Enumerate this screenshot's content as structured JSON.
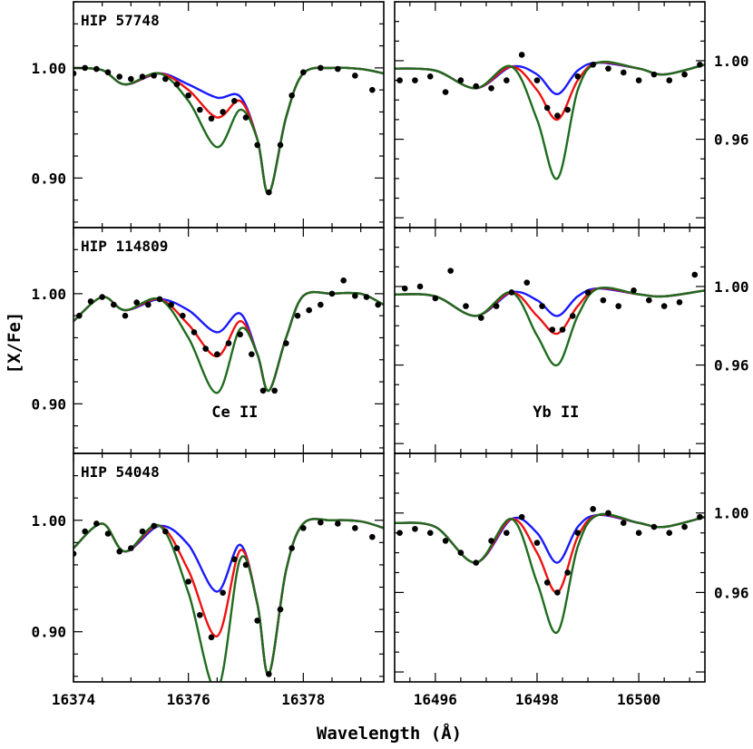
{
  "figure": {
    "xlabel": "Wavelength (Å)",
    "ylabel": "[X/Fe]"
  },
  "colors": {
    "blue": "#1a1aff",
    "red": "#ee1111",
    "green": "#1f6b1f",
    "points": "#000000"
  },
  "chart_data": [
    {
      "type": "line",
      "panel": "top-left",
      "star_label": "HIP 57748",
      "element_label": "",
      "xlim": [
        16374,
        16379.4
      ],
      "ylim": [
        0.855,
        1.06
      ],
      "x_ticks": [
        "16374",
        "16376",
        "16378"
      ],
      "y_ticks": [
        "1.00",
        "0.90"
      ],
      "y_tick_side": "left",
      "series": [
        {
          "color": "blue",
          "x": [
            16374.0,
            16374.5,
            16374.9,
            16375.5,
            16376.0,
            16376.5,
            16376.9,
            16377.2,
            16377.4,
            16377.7,
            16378.0,
            16378.5,
            16379.0,
            16379.4
          ],
          "y": [
            1.0,
            0.998,
            0.985,
            0.995,
            0.985,
            0.973,
            0.974,
            0.935,
            0.886,
            0.955,
            0.995,
            1.0,
            0.999,
            0.995
          ]
        },
        {
          "color": "red",
          "x": [
            16374.0,
            16374.5,
            16374.9,
            16375.5,
            16376.0,
            16376.5,
            16376.9,
            16377.2,
            16377.4,
            16377.7,
            16378.0,
            16378.5,
            16379.0,
            16379.4
          ],
          "y": [
            1.0,
            0.998,
            0.985,
            0.995,
            0.98,
            0.955,
            0.97,
            0.935,
            0.886,
            0.955,
            0.995,
            1.0,
            0.999,
            0.995
          ]
        },
        {
          "color": "green",
          "x": [
            16374.0,
            16374.5,
            16374.9,
            16375.5,
            16376.0,
            16376.5,
            16376.9,
            16377.2,
            16377.4,
            16377.7,
            16378.0,
            16378.5,
            16379.0,
            16379.4
          ],
          "y": [
            1.0,
            0.998,
            0.985,
            0.995,
            0.97,
            0.928,
            0.962,
            0.935,
            0.886,
            0.955,
            0.995,
            1.0,
            0.999,
            0.995
          ]
        }
      ],
      "points": {
        "x": [
          16374.0,
          16374.2,
          16374.4,
          16374.6,
          16374.8,
          16375.0,
          16375.2,
          16375.4,
          16375.6,
          16375.8,
          16376.0,
          16376.2,
          16376.4,
          16376.6,
          16376.8,
          16377.0,
          16377.2,
          16377.4,
          16377.6,
          16377.8,
          16378.0,
          16378.3,
          16378.6,
          16378.9,
          16379.2
        ],
        "y": [
          0.995,
          1.0,
          0.999,
          0.996,
          0.992,
          0.99,
          0.992,
          0.993,
          0.99,
          0.985,
          0.975,
          0.962,
          0.954,
          0.96,
          0.97,
          0.955,
          0.93,
          0.887,
          0.93,
          0.975,
          0.996,
          1.0,
          0.999,
          0.993,
          0.98
        ]
      }
    },
    {
      "type": "line",
      "panel": "top-right",
      "star_label": "",
      "element_label": "",
      "xlim": [
        16495.2,
        16501.3
      ],
      "ylim": [
        0.915,
        1.03
      ],
      "x_ticks": [
        "16496",
        "16498",
        "16500"
      ],
      "y_ticks": [
        "1.00",
        "0.96"
      ],
      "y_tick_side": "right",
      "series": [
        {
          "color": "blue",
          "x": [
            16495.2,
            16496.0,
            16496.8,
            16497.5,
            16498.0,
            16498.4,
            16498.8,
            16499.2,
            16500.0,
            16500.5,
            16501.3
          ],
          "y": [
            0.996,
            0.995,
            0.986,
            0.997,
            0.993,
            0.983,
            0.995,
            0.999,
            0.996,
            0.993,
            0.998
          ]
        },
        {
          "color": "red",
          "x": [
            16495.2,
            16496.0,
            16496.8,
            16497.5,
            16498.0,
            16498.4,
            16498.8,
            16499.2,
            16500.0,
            16500.5,
            16501.3
          ],
          "y": [
            0.996,
            0.995,
            0.986,
            0.997,
            0.985,
            0.97,
            0.99,
            0.999,
            0.996,
            0.993,
            0.998
          ]
        },
        {
          "color": "green",
          "x": [
            16495.2,
            16496.0,
            16496.8,
            16497.5,
            16498.0,
            16498.4,
            16498.8,
            16499.2,
            16500.0,
            16500.5,
            16501.3
          ],
          "y": [
            0.996,
            0.995,
            0.986,
            0.997,
            0.97,
            0.94,
            0.985,
            0.999,
            0.996,
            0.993,
            0.998
          ]
        }
      ],
      "points": {
        "x": [
          16495.3,
          16495.6,
          16495.9,
          16496.2,
          16496.5,
          16496.8,
          16497.1,
          16497.4,
          16497.7,
          16498.0,
          16498.2,
          16498.4,
          16498.6,
          16498.8,
          16499.1,
          16499.4,
          16499.7,
          16500.0,
          16500.3,
          16500.6,
          16500.9,
          16501.2
        ],
        "y": [
          0.99,
          0.99,
          0.992,
          0.984,
          0.99,
          0.987,
          0.986,
          0.99,
          1.003,
          0.99,
          0.976,
          0.972,
          0.975,
          0.992,
          0.998,
          0.996,
          0.994,
          0.99,
          0.993,
          0.99,
          0.993,
          0.998
        ]
      }
    },
    {
      "type": "line",
      "panel": "middle-left",
      "star_label": "HIP 114809",
      "element_label": "Ce II",
      "xlim": [
        16374,
        16379.4
      ],
      "ylim": [
        0.855,
        1.06
      ],
      "x_ticks": [
        "16374",
        "16376",
        "16378"
      ],
      "y_ticks": [
        "1.00",
        "0.90"
      ],
      "y_tick_side": "left",
      "series": [
        {
          "color": "blue",
          "x": [
            16374.0,
            16374.5,
            16374.9,
            16375.5,
            16376.0,
            16376.5,
            16376.9,
            16377.2,
            16377.4,
            16377.7,
            16378.0,
            16378.5,
            16379.0,
            16379.4
          ],
          "y": [
            0.975,
            0.997,
            0.985,
            0.995,
            0.985,
            0.965,
            0.982,
            0.945,
            0.912,
            0.96,
            0.998,
            1.0,
            1.0,
            0.99
          ]
        },
        {
          "color": "red",
          "x": [
            16374.0,
            16374.5,
            16374.9,
            16375.5,
            16376.0,
            16376.5,
            16376.9,
            16377.2,
            16377.4,
            16377.7,
            16378.0,
            16378.5,
            16379.0,
            16379.4
          ],
          "y": [
            0.975,
            0.997,
            0.985,
            0.995,
            0.972,
            0.943,
            0.975,
            0.945,
            0.912,
            0.96,
            0.998,
            1.0,
            1.0,
            0.99
          ]
        },
        {
          "color": "green",
          "x": [
            16374.0,
            16374.5,
            16374.9,
            16375.5,
            16376.0,
            16376.5,
            16376.9,
            16377.2,
            16377.4,
            16377.7,
            16378.0,
            16378.5,
            16379.0,
            16379.4
          ],
          "y": [
            0.975,
            0.997,
            0.985,
            0.995,
            0.96,
            0.91,
            0.968,
            0.945,
            0.912,
            0.96,
            0.998,
            1.0,
            1.0,
            0.99
          ]
        }
      ],
      "points": {
        "x": [
          16374.1,
          16374.3,
          16374.5,
          16374.7,
          16374.9,
          16375.1,
          16375.3,
          16375.5,
          16375.7,
          16375.9,
          16376.1,
          16376.3,
          16376.5,
          16376.7,
          16376.9,
          16377.1,
          16377.3,
          16377.5,
          16377.7,
          16377.9,
          16378.1,
          16378.3,
          16378.5,
          16378.7,
          16378.9,
          16379.1,
          16379.3
        ],
        "y": [
          0.98,
          0.993,
          0.997,
          0.99,
          0.98,
          0.992,
          0.99,
          0.995,
          0.99,
          0.98,
          0.965,
          0.95,
          0.945,
          0.955,
          0.963,
          0.945,
          0.912,
          0.912,
          0.955,
          0.98,
          0.985,
          0.99,
          1.0,
          1.012,
          0.998,
          0.997,
          0.99
        ]
      }
    },
    {
      "type": "line",
      "panel": "middle-right",
      "star_label": "",
      "element_label": "Yb II",
      "xlim": [
        16495.2,
        16501.3
      ],
      "ylim": [
        0.915,
        1.03
      ],
      "x_ticks": [
        "16496",
        "16498",
        "16500"
      ],
      "y_ticks": [
        "1.00",
        "0.96"
      ],
      "y_tick_side": "right",
      "series": [
        {
          "color": "blue",
          "x": [
            16495.2,
            16496.0,
            16496.8,
            16497.5,
            16498.0,
            16498.4,
            16498.8,
            16499.2,
            16500.0,
            16500.5,
            16501.3
          ],
          "y": [
            0.996,
            0.995,
            0.985,
            0.997,
            0.993,
            0.985,
            0.995,
            0.999,
            0.996,
            0.995,
            0.998
          ]
        },
        {
          "color": "red",
          "x": [
            16495.2,
            16496.0,
            16496.8,
            16497.5,
            16498.0,
            16498.4,
            16498.8,
            16499.2,
            16500.0,
            16500.5,
            16501.3
          ],
          "y": [
            0.996,
            0.995,
            0.985,
            0.997,
            0.985,
            0.976,
            0.99,
            0.999,
            0.996,
            0.995,
            0.998
          ]
        },
        {
          "color": "green",
          "x": [
            16495.2,
            16496.0,
            16496.8,
            16497.5,
            16498.0,
            16498.4,
            16498.8,
            16499.2,
            16500.0,
            16500.5,
            16501.3
          ],
          "y": [
            0.996,
            0.995,
            0.985,
            0.997,
            0.975,
            0.96,
            0.985,
            0.999,
            0.996,
            0.995,
            0.998
          ]
        }
      ],
      "points": {
        "x": [
          16495.4,
          16495.7,
          16496.0,
          16496.3,
          16496.6,
          16496.9,
          16497.2,
          16497.5,
          16497.8,
          16498.1,
          16498.3,
          16498.5,
          16498.7,
          16499.0,
          16499.3,
          16499.6,
          16499.9,
          16500.2,
          16500.5,
          16500.8,
          16501.1
        ],
        "y": [
          0.999,
          1.0,
          0.994,
          1.008,
          0.99,
          0.984,
          0.99,
          0.997,
          1.002,
          0.99,
          0.978,
          0.978,
          0.985,
          0.997,
          0.993,
          0.99,
          0.998,
          0.993,
          0.99,
          0.992,
          1.006
        ]
      }
    },
    {
      "type": "line",
      "panel": "bottom-left",
      "star_label": "HIP 54048",
      "element_label": "",
      "xlim": [
        16374,
        16379.4
      ],
      "ylim": [
        0.855,
        1.06
      ],
      "x_ticks": [
        "16374",
        "16376",
        "16378"
      ],
      "y_ticks": [
        "1.00",
        "0.90"
      ],
      "y_tick_side": "left",
      "series": [
        {
          "color": "blue",
          "x": [
            16374.0,
            16374.5,
            16374.9,
            16375.5,
            16376.0,
            16376.5,
            16376.9,
            16377.2,
            16377.4,
            16377.7,
            16378.0,
            16378.5,
            16379.0,
            16379.4
          ],
          "y": [
            0.975,
            0.997,
            0.972,
            0.995,
            0.978,
            0.936,
            0.978,
            0.925,
            0.862,
            0.955,
            0.997,
            1.0,
            0.999,
            0.993
          ]
        },
        {
          "color": "red",
          "x": [
            16374.0,
            16374.5,
            16374.9,
            16375.5,
            16376.0,
            16376.5,
            16376.9,
            16377.2,
            16377.4,
            16377.7,
            16378.0,
            16378.5,
            16379.0,
            16379.4
          ],
          "y": [
            0.975,
            0.997,
            0.972,
            0.995,
            0.955,
            0.896,
            0.973,
            0.925,
            0.862,
            0.955,
            0.997,
            1.0,
            0.999,
            0.993
          ]
        },
        {
          "color": "green",
          "x": [
            16374.0,
            16374.5,
            16374.9,
            16375.5,
            16376.0,
            16376.5,
            16376.9,
            16377.2,
            16377.4,
            16377.7,
            16378.0,
            16378.5,
            16379.0,
            16379.4
          ],
          "y": [
            0.975,
            0.997,
            0.972,
            0.995,
            0.935,
            0.848,
            0.965,
            0.925,
            0.862,
            0.955,
            0.997,
            1.0,
            0.999,
            0.993
          ]
        }
      ],
      "points": {
        "x": [
          16374.0,
          16374.2,
          16374.4,
          16374.6,
          16374.8,
          16375.0,
          16375.2,
          16375.4,
          16375.6,
          16375.8,
          16376.0,
          16376.2,
          16376.4,
          16376.6,
          16376.8,
          16377.0,
          16377.2,
          16377.4,
          16377.6,
          16377.8,
          16378.0,
          16378.3,
          16378.6,
          16378.9,
          16379.2
        ],
        "y": [
          0.97,
          0.99,
          0.997,
          0.988,
          0.972,
          0.975,
          0.99,
          0.995,
          0.99,
          0.975,
          0.945,
          0.915,
          0.895,
          0.935,
          0.965,
          0.96,
          0.91,
          0.862,
          0.92,
          0.975,
          0.993,
          0.998,
          0.997,
          0.993,
          0.985
        ]
      }
    },
    {
      "type": "line",
      "panel": "bottom-right",
      "star_label": "",
      "element_label": "",
      "xlim": [
        16495.2,
        16501.3
      ],
      "ylim": [
        0.915,
        1.03
      ],
      "x_ticks": [
        "16496",
        "16498",
        "16500"
      ],
      "y_ticks": [
        "1.00",
        "0.96"
      ],
      "y_tick_side": "right",
      "series": [
        {
          "color": "blue",
          "x": [
            16495.2,
            16496.0,
            16496.8,
            16497.5,
            16498.0,
            16498.4,
            16498.8,
            16499.2,
            16500.0,
            16500.5,
            16501.3
          ],
          "y": [
            0.995,
            0.993,
            0.975,
            0.997,
            0.99,
            0.975,
            0.993,
            0.999,
            0.995,
            0.993,
            0.998
          ]
        },
        {
          "color": "red",
          "x": [
            16495.2,
            16496.0,
            16496.8,
            16497.5,
            16498.0,
            16498.4,
            16498.8,
            16499.2,
            16500.0,
            16500.5,
            16501.3
          ],
          "y": [
            0.995,
            0.993,
            0.975,
            0.997,
            0.98,
            0.96,
            0.988,
            0.999,
            0.995,
            0.993,
            0.998
          ]
        },
        {
          "color": "green",
          "x": [
            16495.2,
            16496.0,
            16496.8,
            16497.5,
            16498.0,
            16498.4,
            16498.8,
            16499.2,
            16500.0,
            16500.5,
            16501.3
          ],
          "y": [
            0.995,
            0.993,
            0.975,
            0.997,
            0.965,
            0.94,
            0.983,
            0.999,
            0.995,
            0.993,
            0.998
          ]
        }
      ],
      "points": {
        "x": [
          16495.3,
          16495.6,
          16495.9,
          16496.2,
          16496.5,
          16496.8,
          16497.1,
          16497.4,
          16497.7,
          16498.0,
          16498.2,
          16498.4,
          16498.6,
          16498.8,
          16499.1,
          16499.4,
          16499.7,
          16500.0,
          16500.3,
          16500.6,
          16500.9,
          16501.2
        ],
        "y": [
          0.99,
          0.992,
          0.99,
          0.986,
          0.98,
          0.975,
          0.986,
          0.99,
          0.998,
          0.985,
          0.965,
          0.96,
          0.97,
          0.99,
          1.002,
          1.0,
          0.995,
          0.99,
          0.993,
          0.99,
          0.993,
          0.998
        ]
      }
    }
  ]
}
